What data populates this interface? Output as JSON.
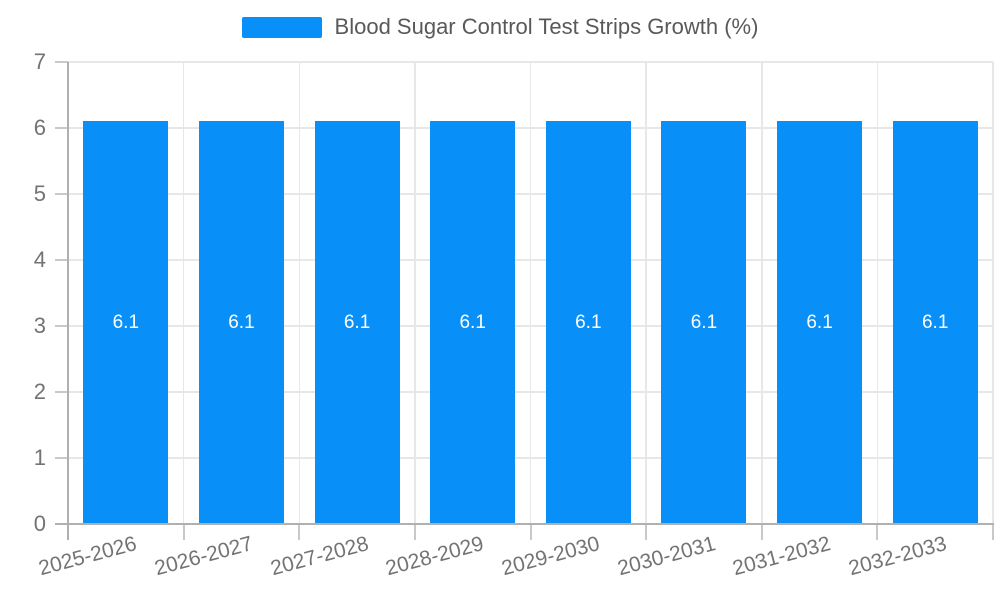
{
  "legend": {
    "position": "top",
    "label": "Blood Sugar Control Test Strips Growth (%)"
  },
  "chart_data": {
    "type": "bar",
    "title": "Blood Sugar Control Test Strips Growth (%)",
    "categories": [
      "2025-2026",
      "2026-2027",
      "2027-2028",
      "2028-2029",
      "2029-2030",
      "2030-2031",
      "2031-2032",
      "2032-2033"
    ],
    "values": [
      6.1,
      6.1,
      6.1,
      6.1,
      6.1,
      6.1,
      6.1,
      6.1
    ],
    "bar_labels": [
      "6.1",
      "6.1",
      "6.1",
      "6.1",
      "6.1",
      "6.1",
      "6.1",
      "6.1"
    ],
    "xlabel": "",
    "ylabel": "",
    "ylim": [
      0,
      7
    ],
    "yticks": [
      0,
      1,
      2,
      3,
      4,
      5,
      6,
      7
    ],
    "grid": true,
    "legend_position": "top",
    "x_label_rotation_deg": -15
  },
  "colors": {
    "bar": "#0890F8",
    "bar_label": "#FFFFFF",
    "grid": "#E7E7E7",
    "axis": "#B0B0B0",
    "tick": "#C9C9C9",
    "axis_text": "#737373",
    "title_text": "#595959",
    "background": "#FFFFFF"
  }
}
